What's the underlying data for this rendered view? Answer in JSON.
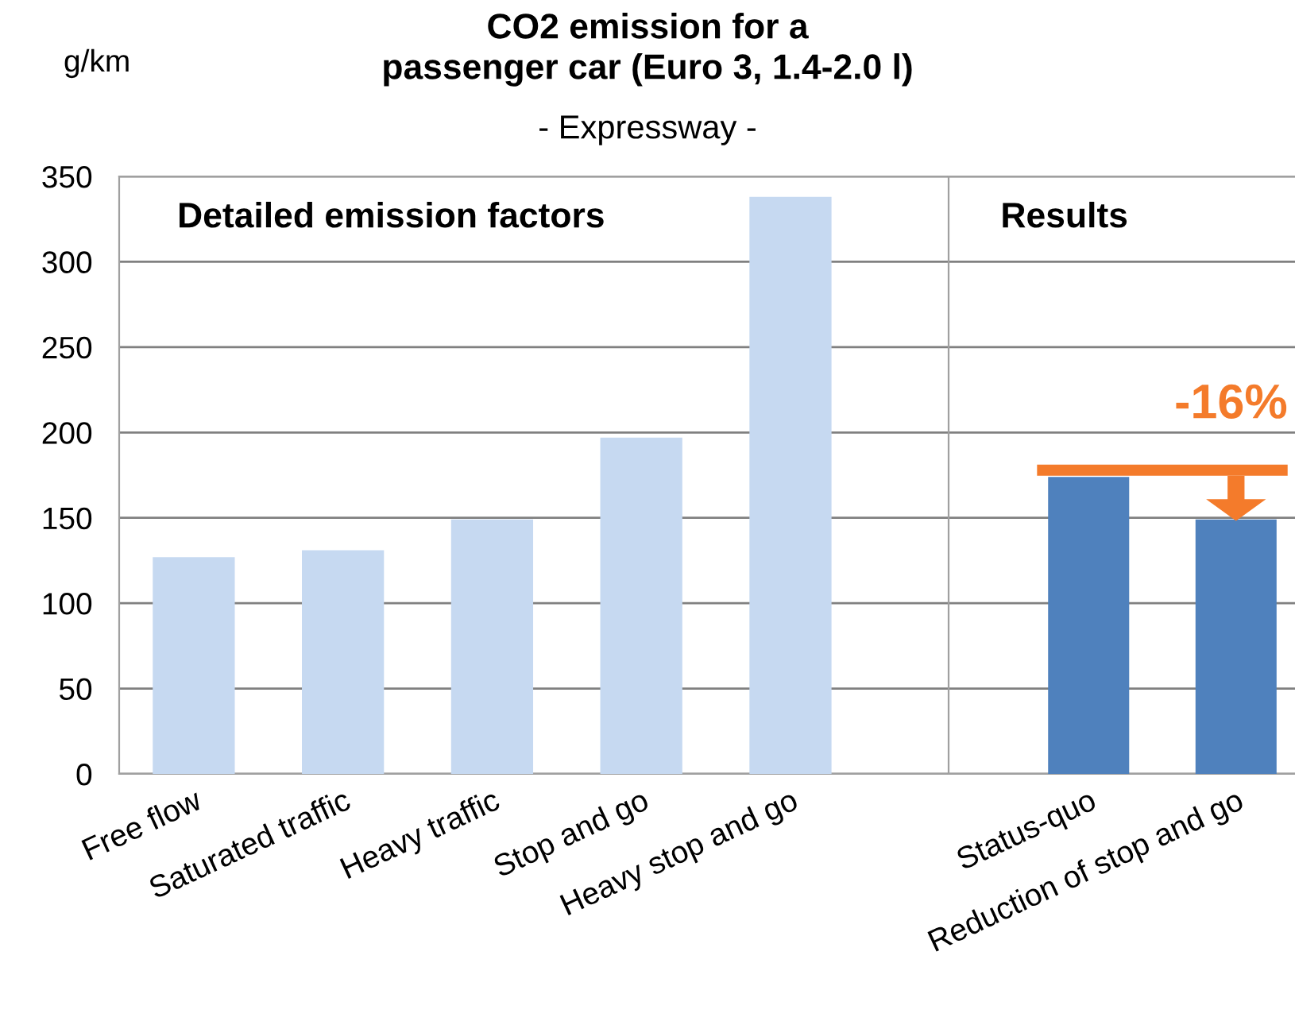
{
  "chart_data": [
    {
      "type": "bar",
      "title": "CO2 emission for a\npassenger car (Euro 3, 1.4-2.0 l)",
      "subtitle": "- Expressway -",
      "ylabel": "g/km",
      "categories": [
        "Free flow",
        "Saturated traffic",
        "Heavy traffic",
        "Stop and go",
        "Heavy stop and go"
      ],
      "series": [
        {
          "color": "#c6d9f1",
          "values": [
            127,
            131,
            149,
            197,
            338
          ]
        }
      ],
      "ylim": [
        0,
        350
      ],
      "yticks": [
        0,
        50,
        100,
        150,
        200,
        250,
        300,
        350
      ],
      "grid": "y",
      "annotations": [
        "Detailed emission factors"
      ]
    },
    {
      "type": "bar",
      "categories": [
        "Status-quo",
        "Reduction of stop and go"
      ],
      "series": [
        {
          "color": "#4f81bd",
          "values": [
            174,
            149
          ]
        }
      ],
      "ylim": [
        0,
        350
      ],
      "yticks": [
        0,
        50,
        100,
        150,
        200,
        250,
        300,
        350
      ],
      "grid": "y",
      "tick_labels": "x",
      "annotations": [
        "Results",
        "-16%"
      ]
    }
  ]
}
